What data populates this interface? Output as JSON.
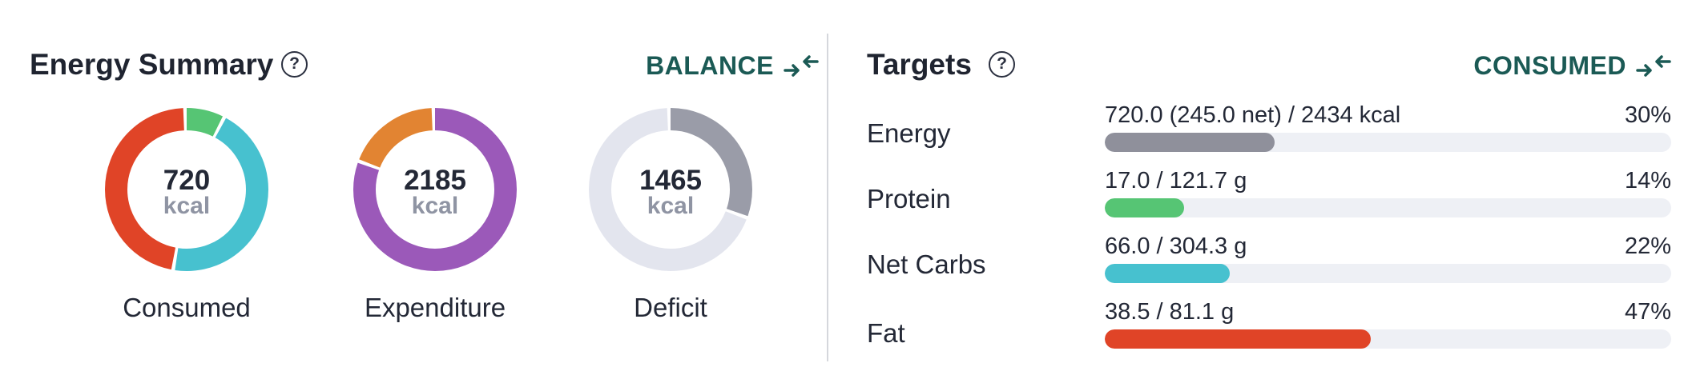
{
  "energy_summary": {
    "title": "Energy Summary",
    "help_icon": "help-circle-icon",
    "help_glyph": "?",
    "toggle_label": "BALANCE",
    "toggle_icon": "collapse-arrows-icon",
    "donuts": [
      {
        "value": "720",
        "unit": "kcal",
        "caption": "Consumed",
        "segments": [
          {
            "share": 0.08,
            "color": "#56c574"
          },
          {
            "share": 0.45,
            "color": "#47c1cf"
          },
          {
            "share": 0.47,
            "color": "#e04427"
          }
        ]
      },
      {
        "value": "2185",
        "unit": "kcal",
        "caption": "Expenditure",
        "segments": [
          {
            "share": 0.81,
            "color": "#9b59b9"
          },
          {
            "share": 0.19,
            "color": "#e28432"
          }
        ]
      },
      {
        "value": "1465",
        "unit": "kcal",
        "caption": "Deficit",
        "segments": [
          {
            "share": 0.31,
            "color": "#9a9ca8"
          },
          {
            "share": 0.69,
            "color": "#e3e5ee"
          }
        ]
      }
    ]
  },
  "targets": {
    "title": "Targets",
    "help_icon": "help-circle-icon",
    "help_glyph": "?",
    "toggle_label": "CONSUMED",
    "toggle_icon": "collapse-arrows-icon",
    "track_color": "#eef0f5",
    "rows": [
      {
        "name": "Energy",
        "amount": "720.0 (245.0 net) / 2434 kcal",
        "percent_label": "30%",
        "fill": 0.3,
        "color": "#8f909b"
      },
      {
        "name": "Protein",
        "amount": "17.0 / 121.7 g",
        "percent_label": "14%",
        "fill": 0.14,
        "color": "#56c574"
      },
      {
        "name": "Net Carbs",
        "amount": "66.0 / 304.3 g",
        "percent_label": "22%",
        "fill": 0.22,
        "color": "#47c1cf"
      },
      {
        "name": "Fat",
        "amount": "38.5 / 81.1 g",
        "percent_label": "47%",
        "fill": 0.47,
        "color": "#e04427"
      }
    ]
  },
  "colors": {
    "accent": "#1b5a55",
    "text": "#232836",
    "muted": "#8f94a3",
    "divider": "#d5d7dc"
  }
}
